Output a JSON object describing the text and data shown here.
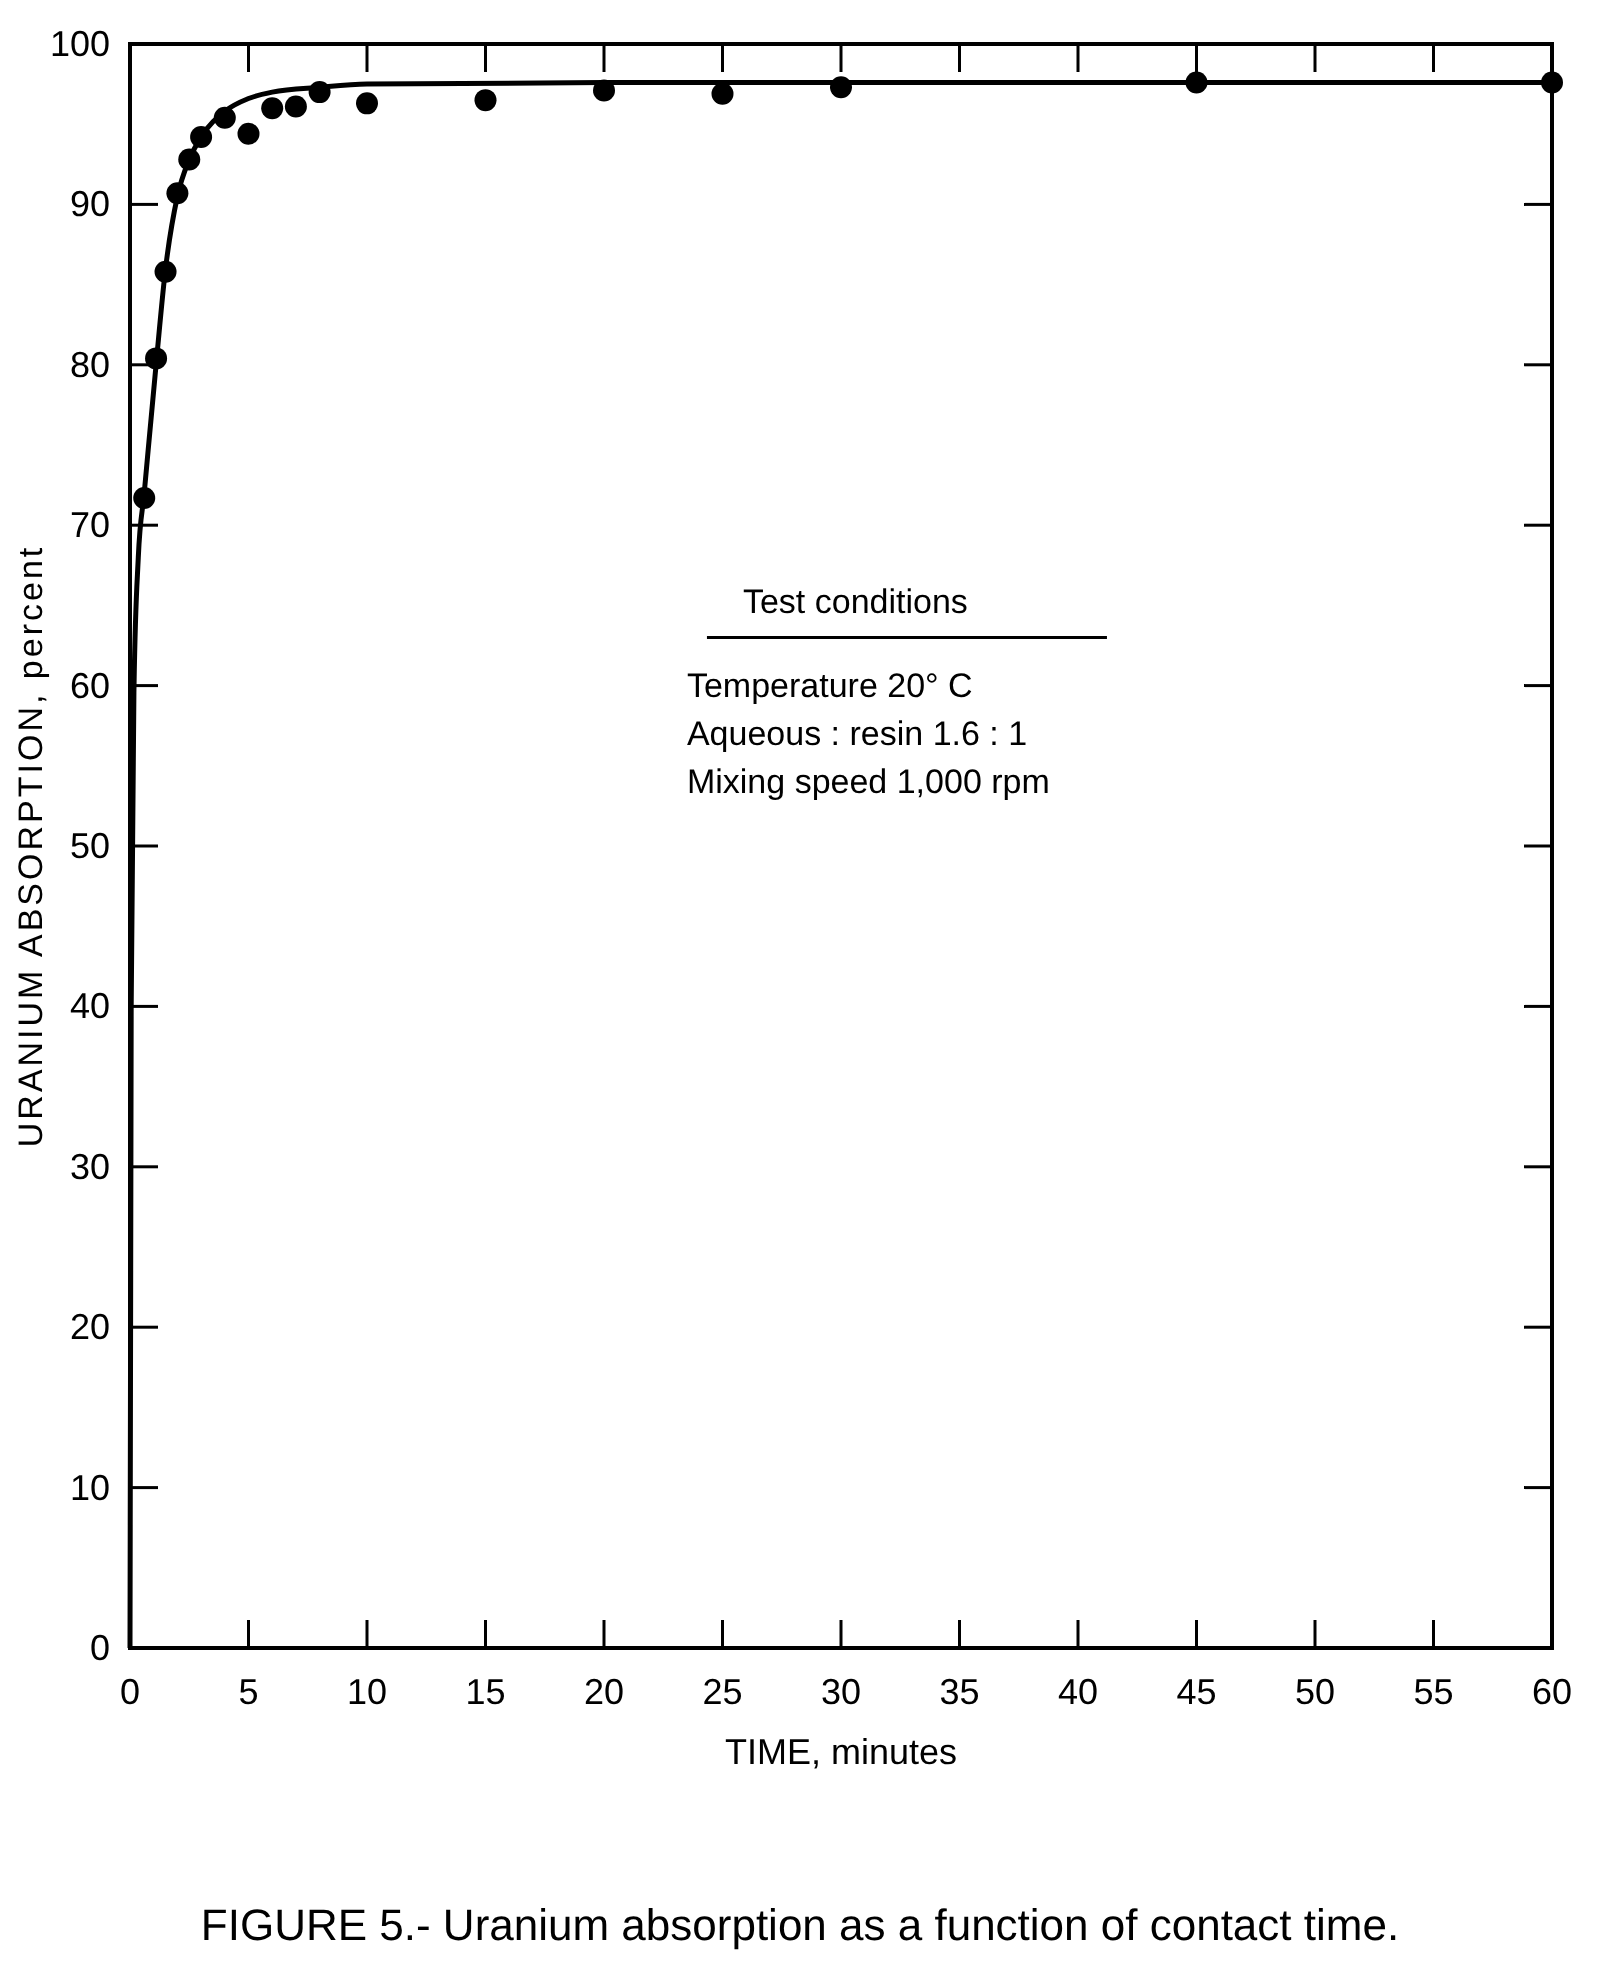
{
  "chart_data": {
    "type": "scatter",
    "title": "FIGURE 5.- Uranium absorption as a function of contact time.",
    "xlabel": "TIME, minutes",
    "ylabel": "URANIUM ABSORPTION, percent",
    "annotations": [
      "Test conditions",
      "Temperature  20° C",
      "Aqueous : resin  1.6 : 1",
      "Mixing speed 1,000 rpm"
    ],
    "xlim": [
      0,
      60
    ],
    "xticks": [
      {
        "value": 0,
        "label": "0"
      },
      5,
      10,
      15,
      20,
      25,
      30,
      35,
      40,
      45,
      50,
      55,
      60
    ],
    "ylim": [
      0,
      100
    ],
    "yticks": [
      {
        "value": 0,
        "label": "0"
      },
      10,
      20,
      30,
      40,
      50,
      60,
      70,
      80,
      90,
      100
    ],
    "grid": false,
    "marker": "circle",
    "series": [
      {
        "color": "#000000",
        "x": [
          0.6,
          1.1,
          1.5,
          2,
          2.5,
          3,
          4,
          5,
          6,
          7,
          8,
          10,
          15,
          20,
          25,
          30,
          45,
          60
        ],
        "values": [
          71.7,
          80.4,
          85.8,
          90.7,
          92.8,
          94.2,
          95.4,
          94.4,
          96,
          96.1,
          97,
          96.3,
          96.5,
          97.1,
          96.9,
          97.3,
          97.6,
          97.6
        ]
      },
      {
        "type": "line",
        "color": "#000000",
        "marker": "none",
        "line_style": "solid",
        "x": [
          0,
          0.05,
          0.17,
          0.35,
          0.6,
          1.1,
          1.5,
          2,
          2.5,
          3,
          4,
          5,
          6,
          8,
          10,
          20,
          60
        ],
        "values": [
          0,
          40,
          60,
          68,
          72,
          80,
          86,
          90.5,
          92.8,
          94.2,
          95.8,
          96.6,
          97,
          97.3,
          97.5,
          97.6,
          97.6
        ]
      }
    ]
  }
}
